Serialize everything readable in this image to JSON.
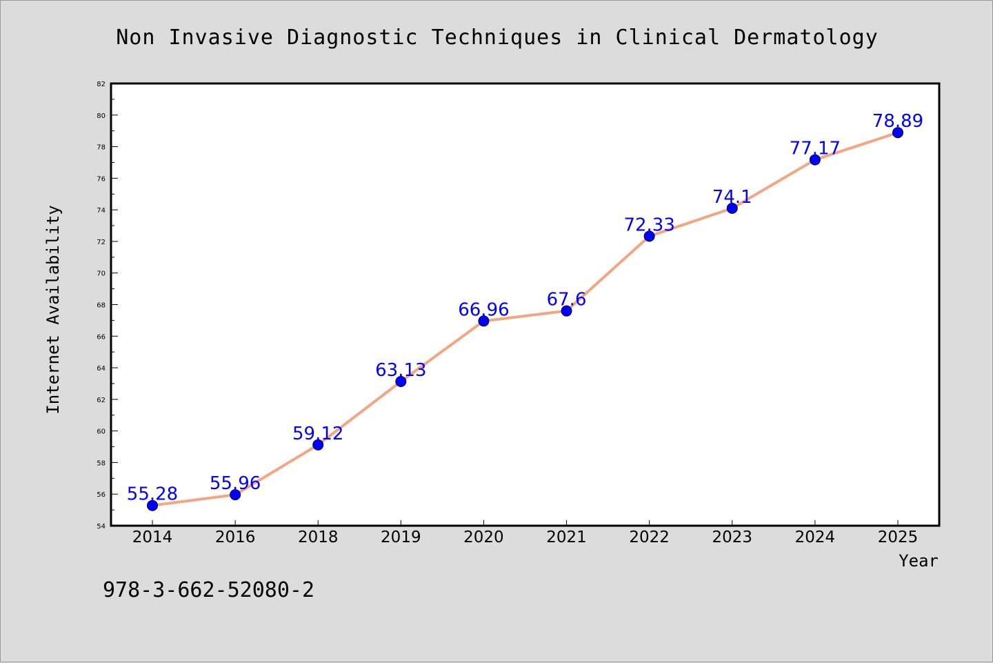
{
  "chart_data": {
    "type": "line",
    "title": "Non Invasive Diagnostic Techniques in Clinical Dermatology",
    "xlabel": "Year",
    "ylabel": "Internet Availability",
    "categories": [
      "2014",
      "2016",
      "2018",
      "2019",
      "2020",
      "2021",
      "2022",
      "2023",
      "2024",
      "2025"
    ],
    "series": [
      {
        "values": [
          55.28,
          55.96,
          59.12,
          63.13,
          66.96,
          67.6,
          72.33,
          74.1,
          77.17,
          78.89
        ],
        "labels": [
          "55.28",
          "55.96",
          "59.12",
          "63.13",
          "66.96",
          "67.6",
          "72.33",
          "74.1",
          "77.17",
          "78.89"
        ]
      }
    ],
    "ylim": [
      54,
      82
    ],
    "yticks": [
      "54",
      "56",
      "58",
      "60",
      "62",
      "64",
      "66",
      "68",
      "70",
      "72",
      "74",
      "76",
      "78",
      "80",
      "82"
    ],
    "grid": false,
    "legend": "none"
  },
  "annotation": "978-3-662-52080-2",
  "colors": {
    "background": "#dcdcdc",
    "plot_area": "#ffffff",
    "line": "#f4a582",
    "marker": "#0000ff",
    "data_label": "#0000ff"
  }
}
